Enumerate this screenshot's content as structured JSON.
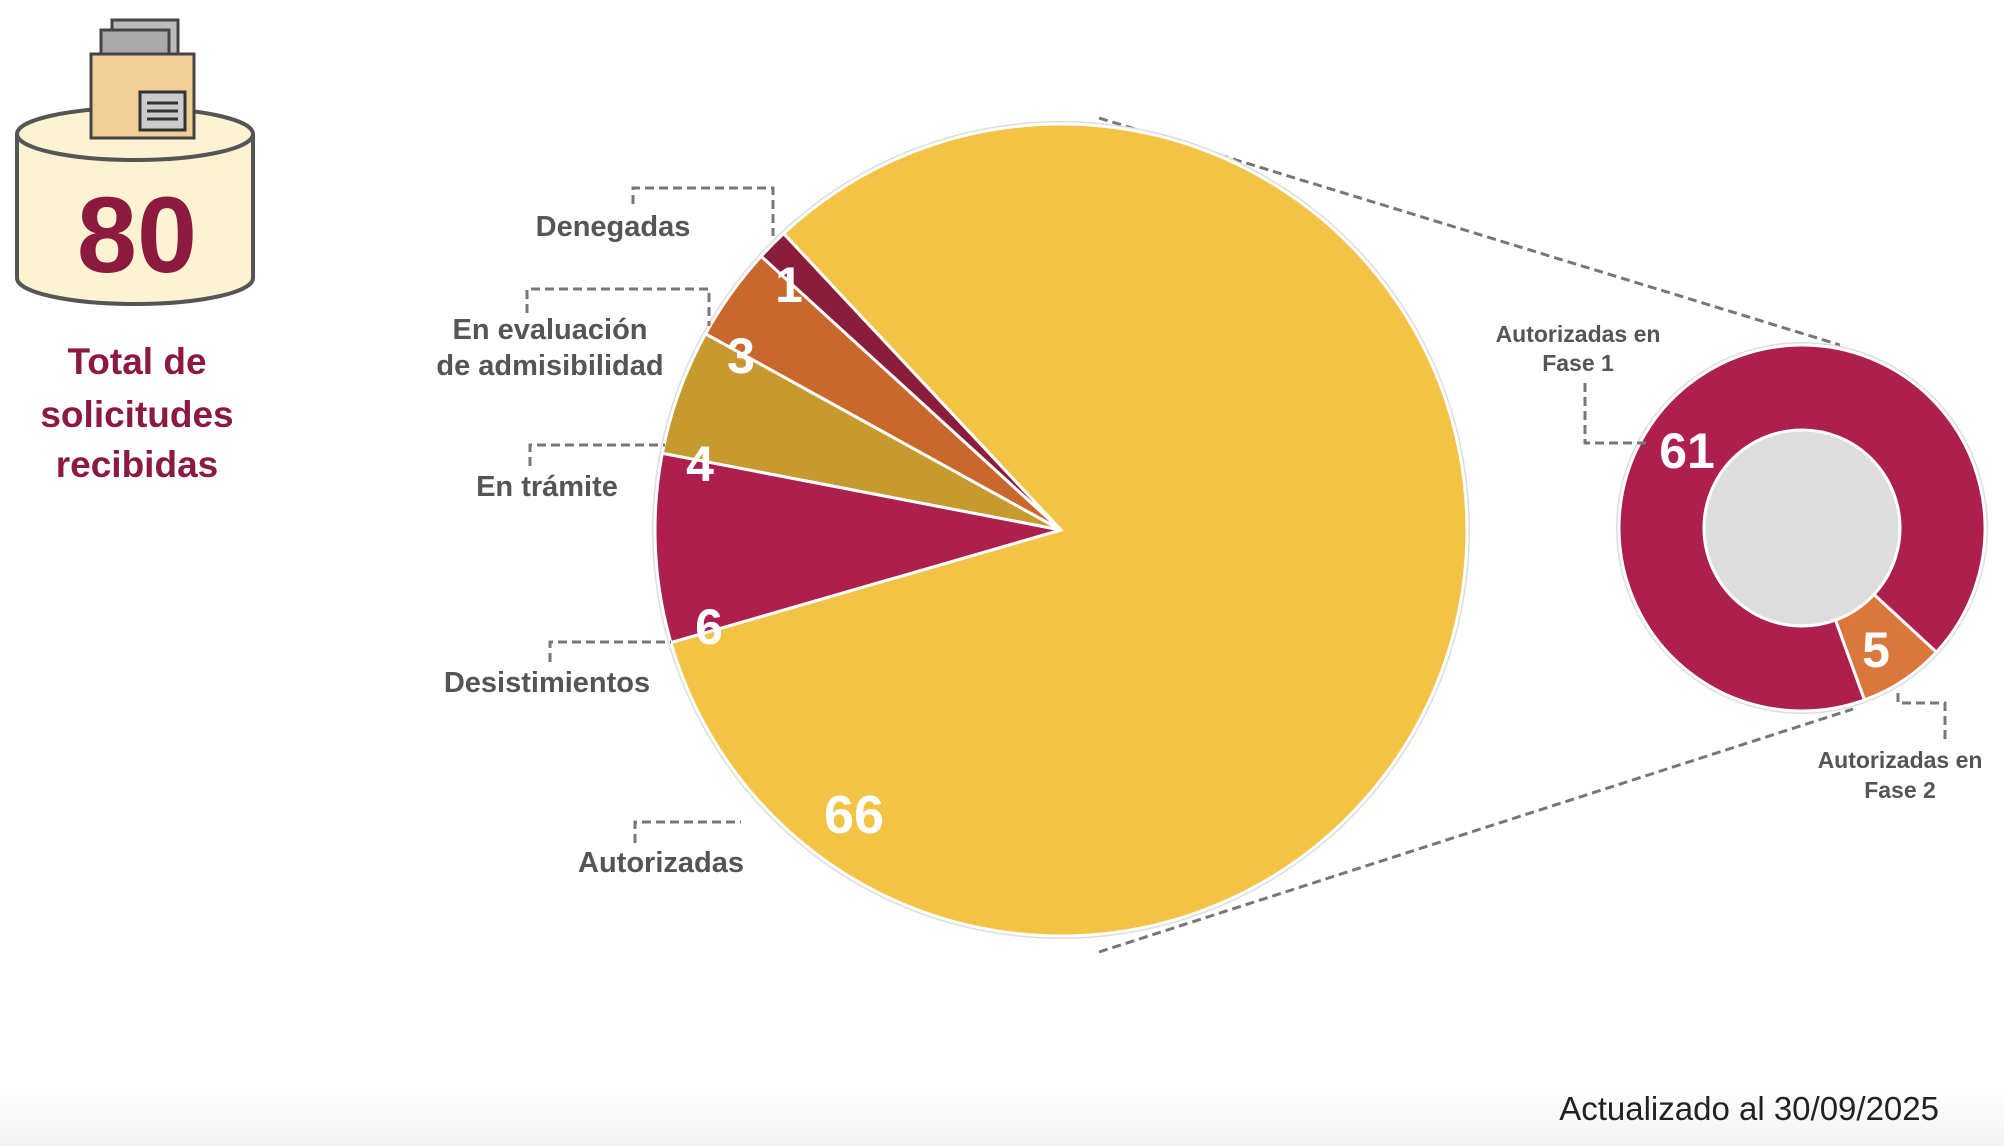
{
  "total": {
    "value": "80",
    "label_lines": [
      "Total de",
      "solicitudes",
      "recibidas"
    ]
  },
  "footer": {
    "updated": "Actualizado al 30/09/2025"
  },
  "colors": {
    "brand": "#8b1a3e",
    "yellow": "#f2c344",
    "crimson": "#ad1f4c",
    "maroon": "#8a1c3c",
    "orange": "#c9682c",
    "mustard": "#c79a30",
    "donut_orange": "#d9773d"
  },
  "chart_data": [
    {
      "type": "pie",
      "title": "",
      "categories": [
        "Autorizadas",
        "Desistimientos",
        "En trámite",
        "En evaluación de admisibilidad",
        "Denegadas"
      ],
      "label_lines": [
        [
          "Autorizadas"
        ],
        [
          "Desistimientos"
        ],
        [
          "En trámite"
        ],
        [
          "En evaluación",
          "de admisibilidad"
        ],
        [
          "Denegadas"
        ]
      ],
      "values": [
        66,
        6,
        4,
        3,
        1
      ],
      "colors": [
        "#f2c344",
        "#ad1f4c",
        "#c79a30",
        "#c9682c",
        "#8a1c3c"
      ]
    },
    {
      "type": "pie",
      "subtype": "donut",
      "title": "",
      "parent": "Autorizadas",
      "categories": [
        "Autorizadas en Fase 1",
        "Autorizadas en Fase 2"
      ],
      "label_lines": [
        [
          "Autorizadas en",
          "Fase 1"
        ],
        [
          "Autorizadas en",
          "Fase 2"
        ]
      ],
      "values": [
        61,
        5
      ],
      "colors": [
        "#ad1f4c",
        "#d9773d"
      ]
    }
  ]
}
